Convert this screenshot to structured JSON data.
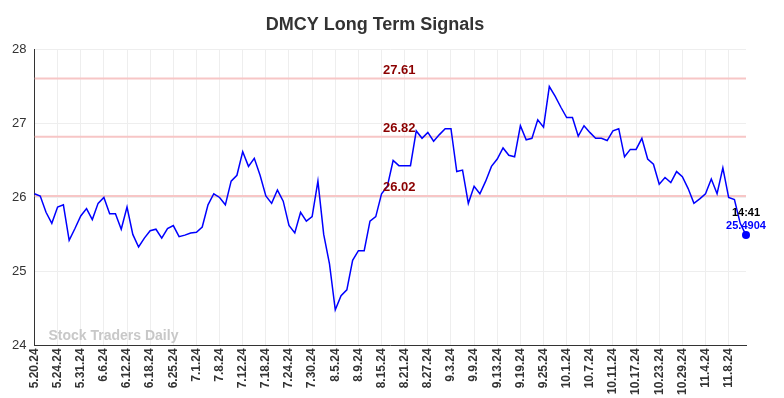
{
  "chart_data": {
    "type": "line",
    "title": "DMCY Long Term Signals",
    "categories": [
      "5.20.24",
      null,
      null,
      null,
      "5.24.24",
      null,
      null,
      null,
      "5.31.24",
      null,
      null,
      null,
      "6.6.24",
      null,
      null,
      null,
      "6.12.24",
      null,
      null,
      null,
      "6.18.24",
      null,
      null,
      null,
      "6.25.24",
      null,
      null,
      null,
      "7.1.24",
      null,
      null,
      null,
      "7.8.24",
      null,
      null,
      null,
      "7.12.24",
      null,
      null,
      null,
      "7.18.24",
      null,
      null,
      null,
      "7.24.24",
      null,
      null,
      null,
      "7.30.24",
      null,
      null,
      null,
      "8.5.24",
      null,
      null,
      null,
      "8.9.24",
      null,
      null,
      null,
      "8.15.24",
      null,
      null,
      null,
      "8.21.24",
      null,
      null,
      null,
      "8.27.24",
      null,
      null,
      null,
      "9.3.24",
      null,
      null,
      null,
      "9.9.24",
      null,
      null,
      null,
      "9.13.24",
      null,
      null,
      null,
      "9.19.24",
      null,
      null,
      null,
      "9.25.24",
      null,
      null,
      null,
      "10.1.24",
      null,
      null,
      null,
      "10.7.24",
      null,
      null,
      null,
      "10.11.24",
      null,
      null,
      null,
      "10.17.24",
      null,
      null,
      null,
      "10.23.24",
      null,
      null,
      null,
      "10.29.24",
      null,
      null,
      null,
      "11.4.24",
      null,
      null,
      null,
      "11.8.24",
      null,
      null,
      null
    ],
    "values": [
      26.05,
      26.02,
      25.8,
      25.65,
      25.87,
      25.9,
      25.42,
      25.58,
      25.75,
      25.85,
      25.7,
      25.92,
      26.0,
      25.78,
      25.78,
      25.57,
      25.87,
      25.5,
      25.33,
      25.45,
      25.55,
      25.57,
      25.45,
      25.58,
      25.62,
      25.47,
      25.49,
      25.52,
      25.53,
      25.6,
      25.9,
      26.05,
      26.0,
      25.9,
      26.22,
      26.3,
      26.62,
      26.42,
      26.53,
      26.3,
      26.02,
      25.92,
      26.1,
      25.95,
      25.62,
      25.52,
      25.8,
      25.68,
      25.74,
      26.22,
      25.5,
      25.1,
      24.48,
      24.67,
      24.75,
      25.15,
      25.28,
      25.28,
      25.68,
      25.74,
      26.05,
      26.15,
      26.5,
      26.43,
      26.43,
      26.43,
      26.9,
      26.8,
      26.88,
      26.76,
      26.85,
      26.93,
      26.93,
      26.35,
      26.37,
      25.92,
      26.15,
      26.05,
      26.22,
      26.42,
      26.52,
      26.67,
      26.57,
      26.55,
      26.97,
      26.78,
      26.8,
      27.05,
      26.95,
      27.5,
      27.37,
      27.22,
      27.08,
      27.08,
      26.83,
      26.97,
      26.88,
      26.8,
      26.8,
      26.77,
      26.9,
      26.93,
      26.55,
      26.65,
      26.65,
      26.8,
      26.52,
      26.45,
      26.18,
      26.27,
      26.2,
      26.35,
      26.28,
      26.12,
      25.92,
      25.98,
      26.05,
      26.25,
      26.05,
      26.4,
      26.0,
      25.97,
      25.65,
      25.4904
    ],
    "color": "#0000ff",
    "signal_lines": [
      27.61,
      26.82,
      26.02
    ],
    "last_time": "14:41",
    "last_value_label": "25.4904",
    "watermark": "Stock Traders Daily",
    "ylim": [
      24,
      28
    ],
    "yticks": [
      24,
      25,
      26,
      27,
      28
    ],
    "grid": true
  }
}
